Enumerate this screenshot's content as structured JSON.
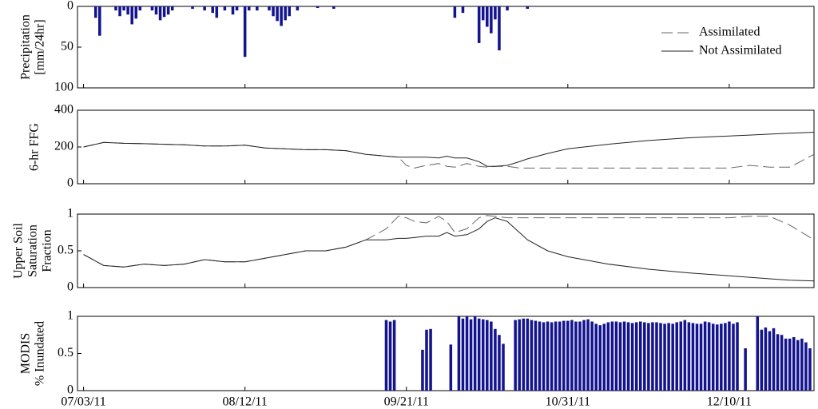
{
  "chart_data": [
    {
      "type": "bar",
      "ylabel": [
        "Precipitation",
        "[mm/24hr]"
      ],
      "color": "#14148f",
      "x": [
        3,
        4,
        8,
        9,
        10,
        11,
        12,
        13,
        14,
        17,
        18,
        19,
        20,
        21,
        22,
        27,
        30,
        32,
        33,
        35,
        37,
        38,
        40,
        41,
        43,
        46,
        47,
        48,
        49,
        50,
        51,
        53,
        58,
        62,
        92,
        94,
        98,
        99,
        100,
        101,
        102,
        103,
        105,
        110
      ],
      "values": [
        14,
        36,
        5,
        12,
        5,
        10,
        22,
        15,
        5,
        5,
        10,
        17,
        13,
        10,
        5,
        3,
        5,
        8,
        14,
        5,
        10,
        5,
        62,
        5,
        5,
        5,
        12,
        18,
        24,
        17,
        12,
        5,
        2,
        3,
        14,
        8,
        45,
        17,
        25,
        33,
        16,
        54,
        5,
        3
      ],
      "xlim": [
        -1.5,
        181
      ],
      "ylim": [
        0,
        100
      ],
      "y_inverted": true,
      "yticks": [
        0,
        50,
        100
      ]
    },
    {
      "type": "line",
      "ylabel": [
        "6-hr FFG"
      ],
      "legend": "upper right",
      "x": [
        0,
        5,
        10,
        15,
        20,
        25,
        30,
        35,
        40,
        45,
        50,
        55,
        60,
        65,
        70,
        75,
        78,
        80,
        82,
        85,
        88,
        90,
        92,
        95,
        98,
        100,
        102,
        105,
        108,
        110,
        115,
        120,
        130,
        140,
        150,
        160,
        165,
        170,
        175,
        181
      ],
      "series": [
        {
          "name": "Assimilated",
          "color": "#666666",
          "linestyle": "dashed",
          "values": [
            200,
            225,
            220,
            218,
            215,
            212,
            205,
            205,
            210,
            195,
            190,
            185,
            185,
            180,
            160,
            150,
            145,
            100,
            85,
            100,
            110,
            95,
            90,
            110,
            95,
            90,
            95,
            95,
            85,
            85,
            85,
            85,
            85,
            85,
            85,
            85,
            100,
            90,
            90,
            160
          ]
        },
        {
          "name": "Not Assimilated",
          "color": "#222222",
          "linestyle": "solid",
          "values": [
            200,
            225,
            220,
            218,
            215,
            212,
            205,
            205,
            210,
            195,
            190,
            185,
            185,
            180,
            160,
            150,
            145,
            145,
            145,
            145,
            140,
            150,
            140,
            140,
            120,
            95,
            95,
            100,
            120,
            135,
            165,
            190,
            215,
            235,
            250,
            260,
            265,
            270,
            275,
            280
          ]
        }
      ],
      "xlim": [
        -1.5,
        181
      ],
      "ylim": [
        0,
        400
      ],
      "yticks": [
        0,
        200,
        400
      ]
    },
    {
      "type": "line",
      "ylabel": [
        "Upper Soil",
        "Saturation",
        "Fraction"
      ],
      "x": [
        0,
        5,
        10,
        15,
        20,
        25,
        30,
        35,
        40,
        45,
        50,
        55,
        60,
        65,
        70,
        75,
        78,
        80,
        82,
        85,
        88,
        90,
        92,
        95,
        98,
        100,
        102,
        105,
        108,
        110,
        115,
        120,
        130,
        140,
        150,
        160,
        165,
        170,
        175,
        181
      ],
      "series": [
        {
          "name": "Assimilated",
          "color": "#666666",
          "linestyle": "dashed",
          "values": [
            0.45,
            0.3,
            0.28,
            0.32,
            0.3,
            0.32,
            0.38,
            0.35,
            0.35,
            0.4,
            0.45,
            0.5,
            0.5,
            0.55,
            0.65,
            0.8,
            0.97,
            0.95,
            0.9,
            0.88,
            0.97,
            0.9,
            0.75,
            0.8,
            0.95,
            0.98,
            0.97,
            0.95,
            0.95,
            0.95,
            0.95,
            0.95,
            0.95,
            0.95,
            0.95,
            0.95,
            0.97,
            0.97,
            0.85,
            0.65
          ]
        },
        {
          "name": "Not Assimilated",
          "color": "#222222",
          "linestyle": "solid",
          "values": [
            0.45,
            0.3,
            0.28,
            0.32,
            0.3,
            0.32,
            0.38,
            0.35,
            0.35,
            0.4,
            0.45,
            0.5,
            0.5,
            0.55,
            0.65,
            0.65,
            0.67,
            0.67,
            0.68,
            0.7,
            0.7,
            0.75,
            0.7,
            0.72,
            0.8,
            0.9,
            0.95,
            0.9,
            0.75,
            0.65,
            0.5,
            0.42,
            0.32,
            0.25,
            0.2,
            0.16,
            0.14,
            0.12,
            0.1,
            0.09
          ]
        }
      ],
      "xlim": [
        -1.5,
        181
      ],
      "ylim": [
        0,
        1
      ],
      "yticks": [
        0,
        0.5,
        1
      ]
    },
    {
      "type": "bar",
      "ylabel": [
        "MODIS",
        "% Inundated"
      ],
      "color": "#14148f",
      "x": [
        75,
        76,
        77,
        84,
        85,
        86,
        91,
        93,
        94,
        95,
        96,
        97,
        98,
        99,
        100,
        101,
        102,
        103,
        104,
        107,
        108,
        109,
        110,
        111,
        112,
        113,
        114,
        115,
        116,
        117,
        118,
        119,
        120,
        121,
        122,
        123,
        124,
        125,
        126,
        127,
        128,
        129,
        130,
        131,
        132,
        133,
        134,
        135,
        136,
        137,
        138,
        139,
        140,
        141,
        142,
        143,
        144,
        145,
        146,
        147,
        148,
        149,
        150,
        151,
        152,
        153,
        154,
        155,
        156,
        157,
        158,
        159,
        160,
        161,
        162,
        164,
        167,
        168,
        169,
        170,
        171,
        172,
        173,
        174,
        175,
        176,
        177,
        178,
        179,
        180
      ],
      "values": [
        0.95,
        0.93,
        0.95,
        0.55,
        0.82,
        0.83,
        0.62,
        1,
        0.97,
        1,
        0.96,
        1,
        0.97,
        0.96,
        0.95,
        0.93,
        0.83,
        0.75,
        0.63,
        0.95,
        0.96,
        0.97,
        0.97,
        0.95,
        0.94,
        0.93,
        0.92,
        0.93,
        0.92,
        0.93,
        0.93,
        0.94,
        0.94,
        0.95,
        0.93,
        0.93,
        0.95,
        0.96,
        0.93,
        0.9,
        0.88,
        0.9,
        0.92,
        0.93,
        0.93,
        0.92,
        0.93,
        0.92,
        0.91,
        0.92,
        0.93,
        0.92,
        0.91,
        0.92,
        0.92,
        0.91,
        0.9,
        0.91,
        0.9,
        0.92,
        0.93,
        0.95,
        0.92,
        0.91,
        0.9,
        0.9,
        0.93,
        0.92,
        0.9,
        0.89,
        0.9,
        0.91,
        0.93,
        0.9,
        0.92,
        0.57,
        1,
        0.82,
        0.85,
        0.8,
        0.84,
        0.76,
        0.75,
        0.7,
        0.7,
        0.72,
        0.68,
        0.7,
        0.65,
        0.57
      ],
      "xlim": [
        -1.5,
        181
      ],
      "ylim": [
        0,
        1
      ],
      "yticks": [
        0,
        0.5,
        1
      ],
      "xticks": [
        {
          "value": 0,
          "label": "07/03/11"
        },
        {
          "value": 40,
          "label": "08/12/11"
        },
        {
          "value": 80,
          "label": "09/21/11"
        },
        {
          "value": 120,
          "label": "10/31/11"
        },
        {
          "value": 160,
          "label": "12/10/11"
        }
      ]
    }
  ]
}
